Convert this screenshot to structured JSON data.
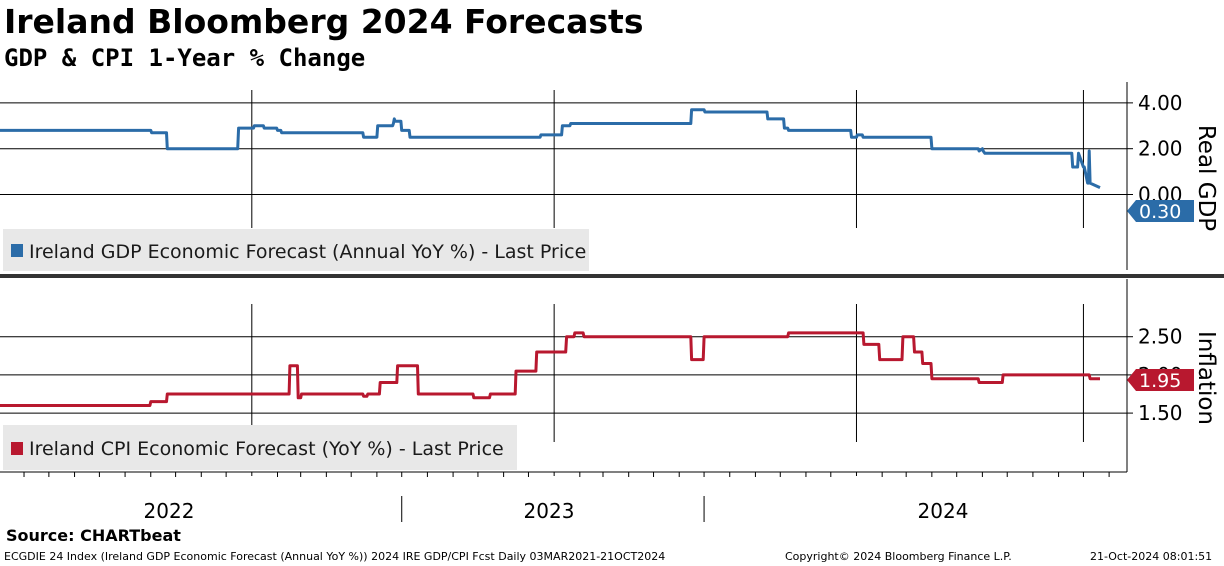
{
  "title": "Ireland Bloomberg 2024 Forecasts",
  "subtitle": "GDP & CPI 1-Year % Change",
  "source": "Source: CHARTbeat",
  "footer": {
    "left": "ECGDIE 24 Index (Ireland GDP Economic Forecast (Annual YoY %)) 2024 IRE GDP/CPI Fcst  Daily 03MAR2021-21OCT2024",
    "center": "Copyright© 2024 Bloomberg Finance L.P.",
    "right": "21-Oct-2024 08:01:51"
  },
  "colors": {
    "gdp": "#2b6ca8",
    "cpi": "#b8182f",
    "grid": "#000000",
    "legend_bg": "#e8e8e8",
    "separator": "#333333"
  },
  "chart_data": [
    {
      "type": "line",
      "name": "Ireland GDP Economic Forecast (Annual YoY %) - Last Price",
      "axis_title": "Real GDP",
      "x_labels": [
        "2022",
        "2023",
        "2024"
      ],
      "y_ticks": [
        "4.00",
        "2.00",
        "0.00"
      ],
      "ylim": [
        -1.2,
        4.3
      ],
      "last_value_label": "0.30",
      "x": [
        "2021-03-03",
        "2021-09-01",
        "2021-09-02",
        "2021-09-20",
        "2021-09-21",
        "2021-12-15",
        "2021-12-16",
        "2022-01-03",
        "2022-01-04",
        "2022-01-15",
        "2022-01-16",
        "2022-01-31",
        "2022-02-01",
        "2022-02-05",
        "2022-02-06",
        "2022-05-15",
        "2022-05-16",
        "2022-06-01",
        "2022-06-02",
        "2022-06-20",
        "2022-06-21",
        "2022-06-22",
        "2022-06-23",
        "2022-06-30",
        "2022-07-01",
        "2022-07-10",
        "2022-07-11",
        "2022-12-15",
        "2022-12-16",
        "2023-01-10",
        "2023-01-11",
        "2023-01-20",
        "2023-01-21",
        "2023-06-15",
        "2023-06-16",
        "2023-07-01",
        "2023-07-02",
        "2023-09-15",
        "2023-09-16",
        "2023-10-05",
        "2023-10-06",
        "2023-10-10",
        "2023-10-11",
        "2023-12-25",
        "2023-12-26",
        "2024-01-01",
        "2024-01-02",
        "2024-01-08",
        "2024-01-09",
        "2024-03-31",
        "2024-04-01",
        "2024-05-27",
        "2024-05-28",
        "2024-06-01",
        "2024-06-02",
        "2024-06-03",
        "2024-06-04",
        "2024-08-24",
        "2024-08-25",
        "2024-09-17",
        "2024-09-18",
        "2024-09-24",
        "2024-09-25",
        "2024-10-01",
        "2024-10-02",
        "2024-10-06",
        "2024-10-07",
        "2024-10-08",
        "2024-10-09",
        "2024-10-21"
      ],
      "values": [
        2.8,
        2.8,
        2.7,
        2.7,
        2.0,
        2.0,
        2.9,
        2.9,
        3.0,
        3.0,
        2.9,
        2.9,
        2.8,
        2.8,
        2.7,
        2.7,
        2.5,
        2.5,
        3.0,
        3.0,
        3.1,
        3.3,
        3.2,
        3.2,
        2.8,
        2.8,
        2.5,
        2.5,
        2.6,
        2.6,
        3.0,
        3.0,
        3.1,
        3.1,
        3.7,
        3.7,
        3.6,
        3.6,
        3.3,
        3.3,
        2.9,
        2.9,
        2.8,
        2.8,
        2.5,
        2.5,
        2.6,
        2.6,
        2.5,
        2.5,
        2.0,
        2.0,
        1.9,
        2.0,
        1.9,
        1.85,
        1.8,
        1.8,
        1.8,
        1.8,
        1.2,
        1.2,
        1.8,
        1.2,
        1.2,
        0.5,
        0.5,
        1.9,
        0.5,
        0.3
      ]
    },
    {
      "type": "line",
      "name": "Ireland CPI Economic Forecast (YoY %) - Last Price",
      "axis_title": "Inflation",
      "x_labels": [
        "2022",
        "2023",
        "2024"
      ],
      "y_ticks": [
        "2.50",
        "2.00",
        "1.50"
      ],
      "ylim": [
        1.2,
        2.85
      ],
      "last_value_label": "1.95",
      "x": [
        "2021-03-03",
        "2021-08-31",
        "2021-09-01",
        "2021-09-20",
        "2021-09-21",
        "2022-02-15",
        "2022-02-16",
        "2022-02-25",
        "2022-02-26",
        "2022-03-01",
        "2022-03-02",
        "2022-03-10",
        "2022-03-11",
        "2022-05-15",
        "2022-05-16",
        "2022-05-20",
        "2022-05-21",
        "2022-06-04",
        "2022-06-05",
        "2022-06-25",
        "2022-06-26",
        "2022-07-01",
        "2022-07-02",
        "2022-07-20",
        "2022-07-21",
        "2022-09-25",
        "2022-09-26",
        "2022-10-15",
        "2022-10-16",
        "2022-11-15",
        "2022-11-16",
        "2022-12-10",
        "2022-12-11",
        "2023-01-15",
        "2023-01-16",
        "2023-01-25",
        "2023-01-26",
        "2023-02-05",
        "2023-02-06",
        "2023-06-15",
        "2023-06-16",
        "2023-06-30",
        "2023-07-01",
        "2023-10-10",
        "2023-10-11",
        "2024-01-09",
        "2024-01-10",
        "2024-01-28",
        "2024-01-29",
        "2024-02-10",
        "2024-02-11",
        "2024-02-25",
        "2024-02-26",
        "2024-03-10",
        "2024-03-11",
        "2024-03-20",
        "2024-03-21",
        "2024-03-31",
        "2024-04-01",
        "2024-05-27",
        "2024-05-28",
        "2024-06-25",
        "2024-06-26",
        "2024-10-08",
        "2024-10-09",
        "2024-10-21"
      ],
      "values": [
        1.6,
        1.6,
        1.65,
        1.65,
        1.75,
        1.75,
        2.12,
        2.12,
        1.7,
        1.7,
        1.75,
        1.75,
        1.75,
        1.75,
        1.72,
        1.72,
        1.75,
        1.75,
        1.9,
        1.9,
        2.12,
        2.12,
        2.12,
        2.12,
        1.75,
        1.75,
        1.7,
        1.7,
        1.75,
        1.75,
        2.05,
        2.05,
        2.3,
        2.3,
        2.5,
        2.5,
        2.55,
        2.55,
        2.5,
        2.5,
        2.2,
        2.2,
        2.5,
        2.5,
        2.55,
        2.55,
        2.4,
        2.4,
        2.2,
        2.2,
        2.2,
        2.2,
        2.5,
        2.5,
        2.3,
        2.3,
        2.15,
        2.15,
        1.95,
        1.95,
        1.9,
        1.9,
        2.0,
        2.0,
        1.95,
        1.95
      ]
    }
  ]
}
